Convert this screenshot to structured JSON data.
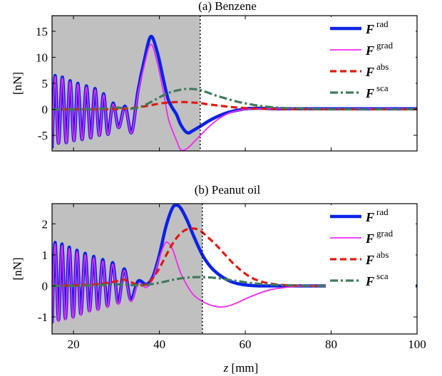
{
  "colors": {
    "F_rad": "#0a22e8",
    "F_grad": "#f227f2",
    "F_abs": "#e01a10",
    "F_sca": "#3f7a5c",
    "shade": "#c0c0c0"
  },
  "xlabel": {
    "italic": "z",
    "rest": " [mm]"
  },
  "chart_data": [
    {
      "type": "line",
      "title": "(a) Benzene",
      "ylabel": "[nN]",
      "xlim": [
        15,
        100
      ],
      "ylim": [
        -8,
        18
      ],
      "xticks": [
        20,
        40,
        60,
        80,
        100
      ],
      "yticks": [
        -5,
        0,
        5,
        10,
        15
      ],
      "ytick_labels": [
        "-5",
        "0",
        "5",
        "10",
        "15"
      ],
      "shaded_region": [
        15,
        49.5
      ],
      "vline_x": 49.5,
      "legend_position": "top-right",
      "series": [
        {
          "key": "F_rad",
          "name": "F",
          "sup": "rad",
          "x": [
            15,
            15.7,
            16.5,
            17.4,
            18.3,
            19.2,
            20.1,
            21.0,
            22.0,
            23.0,
            24.0,
            25.0,
            26.0,
            27.0,
            28.0,
            29.2,
            30.5,
            32.0,
            33.5,
            35.0,
            36.5,
            38.0,
            39.5,
            41.0,
            42.0,
            43.0,
            44.0,
            45.0,
            46.5,
            48.0,
            50.0,
            52.0,
            54.0,
            56.0,
            58.0,
            60.0,
            62.0,
            64.0,
            67.0,
            70.0,
            75.0,
            80.0,
            85.0,
            90.0,
            95.0,
            100.0
          ],
          "y": [
            -7.5,
            6.5,
            -6.5,
            6.2,
            -6.4,
            5.5,
            -6.0,
            5.0,
            -5.8,
            4.5,
            -5.5,
            4.0,
            -5.0,
            3.0,
            -4.8,
            1.2,
            -3.5,
            0.6,
            -4.5,
            3.5,
            9.5,
            14.0,
            11.0,
            5.5,
            2.0,
            0.3,
            -1.0,
            -3.0,
            -4.5,
            -4.0,
            -3.0,
            -2.0,
            -1.2,
            -0.6,
            -0.2,
            0.1,
            0.2,
            0.2,
            0.1,
            0.1,
            0.1,
            0.1,
            0.1,
            0.1,
            0.1,
            0.1
          ]
        },
        {
          "key": "F_grad",
          "name": "F",
          "sup": "grad",
          "x": [
            15,
            15.7,
            16.5,
            17.4,
            18.3,
            19.2,
            20.1,
            21.0,
            22.0,
            23.0,
            24.0,
            25.0,
            26.0,
            27.0,
            28.0,
            29.2,
            30.5,
            32.0,
            33.5,
            35.0,
            36.5,
            38.0,
            39.5,
            41.0,
            42.0,
            43.0,
            44.0,
            45.0,
            46.5,
            48.0,
            50.0,
            52.0,
            54.0,
            56.0,
            58.0,
            60.0,
            62.0,
            64.0,
            67.0,
            70.0,
            75.0,
            80.0,
            85.0,
            90.0,
            95.0,
            100.0
          ],
          "y": [
            -7.6,
            6.3,
            -6.6,
            6.0,
            -6.5,
            5.3,
            -6.1,
            4.8,
            -5.9,
            4.3,
            -5.6,
            3.8,
            -5.1,
            2.8,
            -4.9,
            1.0,
            -3.6,
            0.4,
            -4.6,
            3.0,
            8.5,
            12.5,
            9.0,
            3.0,
            -1.5,
            -4.0,
            -6.0,
            -7.8,
            -7.5,
            -6.3,
            -4.6,
            -3.0,
            -1.7,
            -0.8,
            -0.3,
            0.0,
            0.1,
            0.1,
            0.1,
            0.1,
            0.1,
            0.1,
            0.1,
            0.1,
            0.1,
            0.1
          ]
        },
        {
          "key": "F_abs",
          "name": "F",
          "sup": "abs",
          "x": [
            15,
            20,
            25,
            30,
            33,
            36,
            38,
            40,
            42,
            44,
            46,
            48,
            49.5,
            51,
            53,
            55,
            58,
            61,
            64,
            68,
            72,
            76,
            80,
            85,
            90,
            95,
            100
          ],
          "y": [
            0.0,
            0.0,
            0.0,
            0.05,
            0.2,
            0.5,
            0.8,
            1.1,
            1.3,
            1.4,
            1.4,
            1.3,
            1.2,
            1.0,
            0.8,
            0.6,
            0.35,
            0.2,
            0.1,
            0.05,
            0.02,
            0.0,
            0.0,
            0.0,
            0.0,
            0.0,
            0.0
          ]
        },
        {
          "key": "F_sca",
          "name": "F",
          "sup": "sca",
          "x": [
            15,
            20,
            25,
            28,
            30,
            32,
            34,
            36,
            38,
            40,
            42,
            44,
            46,
            48,
            49.5,
            51,
            53,
            55,
            58,
            61,
            64,
            68,
            72,
            76,
            80,
            85,
            90,
            95,
            100
          ],
          "y": [
            0.0,
            0.0,
            0.05,
            0.2,
            0.35,
            0.2,
            0.15,
            0.6,
            1.4,
            2.3,
            3.1,
            3.6,
            3.9,
            3.9,
            3.7,
            3.3,
            2.7,
            2.2,
            1.5,
            1.0,
            0.6,
            0.3,
            0.15,
            0.05,
            0.0,
            0.0,
            0.0,
            0.0,
            0.0
          ]
        }
      ]
    },
    {
      "type": "line",
      "title": "(b) Peanut oil",
      "ylabel": "[nN]",
      "xlim": [
        15,
        100
      ],
      "ylim": [
        -1.55,
        2.65
      ],
      "xticks": [
        20,
        40,
        60,
        80,
        100
      ],
      "xtick_labels": [
        "20",
        "40",
        "60",
        "80",
        "100"
      ],
      "yticks": [
        -1,
        0,
        1,
        2
      ],
      "ytick_labels": [
        "-1",
        "0",
        "1",
        "2"
      ],
      "shaded_region": [
        15,
        50
      ],
      "vline_x": 50,
      "legend_position": "top-right",
      "series": [
        {
          "key": "F_rad",
          "name": "F",
          "sup": "rad",
          "x": [
            15,
            15.7,
            16.5,
            17.3,
            18.1,
            19.0,
            19.9,
            20.8,
            21.7,
            22.7,
            23.7,
            24.7,
            25.7,
            26.8,
            27.9,
            29.1,
            30.4,
            31.8,
            33.3,
            35.0,
            37.0,
            38.5,
            40.0,
            41.5,
            43.0,
            44.0,
            45.0,
            46.5,
            48.0,
            50.0,
            52.0,
            54.0,
            56.0,
            58.0,
            60.0,
            63.0,
            66.0,
            70.0,
            75.0,
            80.0,
            85.0,
            90.0,
            95.0,
            100.0
          ],
          "y": [
            -1.2,
            1.4,
            -1.1,
            1.35,
            -1.05,
            1.25,
            -1.0,
            1.15,
            -0.9,
            1.05,
            -0.8,
            0.95,
            -0.75,
            0.85,
            -0.65,
            0.75,
            -0.55,
            0.55,
            -0.45,
            0.15,
            0.05,
            0.3,
            1.0,
            1.9,
            2.5,
            2.6,
            2.5,
            2.1,
            1.6,
            1.0,
            0.6,
            0.35,
            0.18,
            0.08,
            0.03,
            0.0,
            0.0,
            0.0,
            0.0,
            0.0,
            0.0,
            0.0,
            0.0,
            0.0
          ]
        },
        {
          "key": "F_grad",
          "name": "F",
          "sup": "grad",
          "x": [
            15,
            15.7,
            16.5,
            17.3,
            18.1,
            19.0,
            19.9,
            20.8,
            21.7,
            22.7,
            23.7,
            24.7,
            25.7,
            26.8,
            27.9,
            29.1,
            30.4,
            31.8,
            33.3,
            35.0,
            37.0,
            38.5,
            40.0,
            41.5,
            43.0,
            44.0,
            45.0,
            46.5,
            48.0,
            50.0,
            52.0,
            54.0,
            56.0,
            58.0,
            60.0,
            63.0,
            66.0,
            70.0,
            75.0,
            80.0,
            85.0,
            90.0,
            95.0,
            100.0
          ],
          "y": [
            -1.25,
            1.35,
            -1.15,
            1.3,
            -1.1,
            1.2,
            -1.05,
            1.1,
            -0.95,
            1.0,
            -0.85,
            0.9,
            -0.8,
            0.8,
            -0.7,
            0.7,
            -0.6,
            0.5,
            -0.5,
            0.05,
            -0.05,
            0.25,
            0.9,
            1.4,
            1.2,
            0.8,
            0.4,
            0.0,
            -0.3,
            -0.5,
            -0.62,
            -0.68,
            -0.65,
            -0.55,
            -0.42,
            -0.25,
            -0.12,
            -0.04,
            0.0,
            0.0,
            0.0,
            0.0,
            0.0,
            0.0
          ]
        },
        {
          "key": "F_abs",
          "name": "F",
          "sup": "abs",
          "x": [
            15,
            20,
            25,
            28,
            30,
            31.5,
            33,
            34.5,
            36,
            37.5,
            39,
            40.5,
            42,
            43.5,
            45,
            46.5,
            48,
            49.5,
            51,
            53,
            55,
            57,
            59,
            61,
            63,
            66,
            70,
            75,
            80,
            85,
            90,
            95,
            100
          ],
          "y": [
            0.0,
            0.02,
            0.05,
            0.1,
            0.15,
            0.2,
            0.15,
            0.05,
            0.02,
            0.1,
            0.35,
            0.7,
            1.1,
            1.45,
            1.7,
            1.83,
            1.85,
            1.78,
            1.6,
            1.35,
            1.05,
            0.75,
            0.5,
            0.3,
            0.17,
            0.07,
            0.02,
            0.0,
            0.0,
            0.0,
            0.0,
            0.0,
            0.0
          ]
        },
        {
          "key": "F_sca",
          "name": "F",
          "sup": "sca",
          "x": [
            15,
            20,
            25,
            30,
            33,
            36,
            38,
            40,
            42,
            44,
            46,
            48,
            50,
            52,
            54,
            56,
            58,
            61,
            64,
            68,
            72,
            76,
            80,
            85,
            90,
            95,
            100
          ],
          "y": [
            0.0,
            0.0,
            0.02,
            0.05,
            0.03,
            0.02,
            0.05,
            0.1,
            0.16,
            0.22,
            0.26,
            0.28,
            0.28,
            0.27,
            0.24,
            0.2,
            0.16,
            0.1,
            0.06,
            0.03,
            0.01,
            0.0,
            0.0,
            0.0,
            0.0,
            0.0,
            0.0
          ]
        }
      ]
    }
  ]
}
